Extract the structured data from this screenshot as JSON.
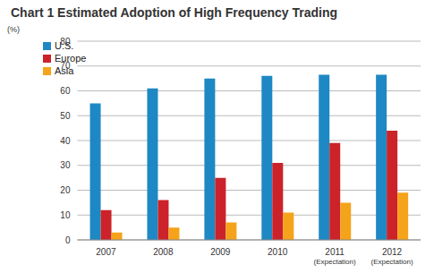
{
  "chart_data": {
    "type": "bar",
    "title": "Chart 1  Estimated Adoption of High Frequency Trading",
    "y_label": "(%)",
    "categories": [
      "2007",
      "2008",
      "2009",
      "2010",
      "2011\n(Expectation)",
      "2012\n(Expectation)"
    ],
    "series": [
      {
        "name": "U.S.",
        "color": "#1e88c4",
        "values": [
          55,
          61,
          65,
          66,
          66.5,
          66.5
        ]
      },
      {
        "name": "Europe",
        "color": "#cc2229",
        "values": [
          12,
          16,
          25,
          31,
          39,
          44
        ]
      },
      {
        "name": "Asia",
        "color": "#f5a31a",
        "values": [
          3,
          5,
          7,
          11,
          15,
          19
        ]
      }
    ],
    "ylim": [
      0,
      80
    ],
    "yticks": [
      0,
      10,
      20,
      30,
      40,
      50,
      60,
      70,
      80
    ],
    "grid": true,
    "legend": "upper left"
  }
}
